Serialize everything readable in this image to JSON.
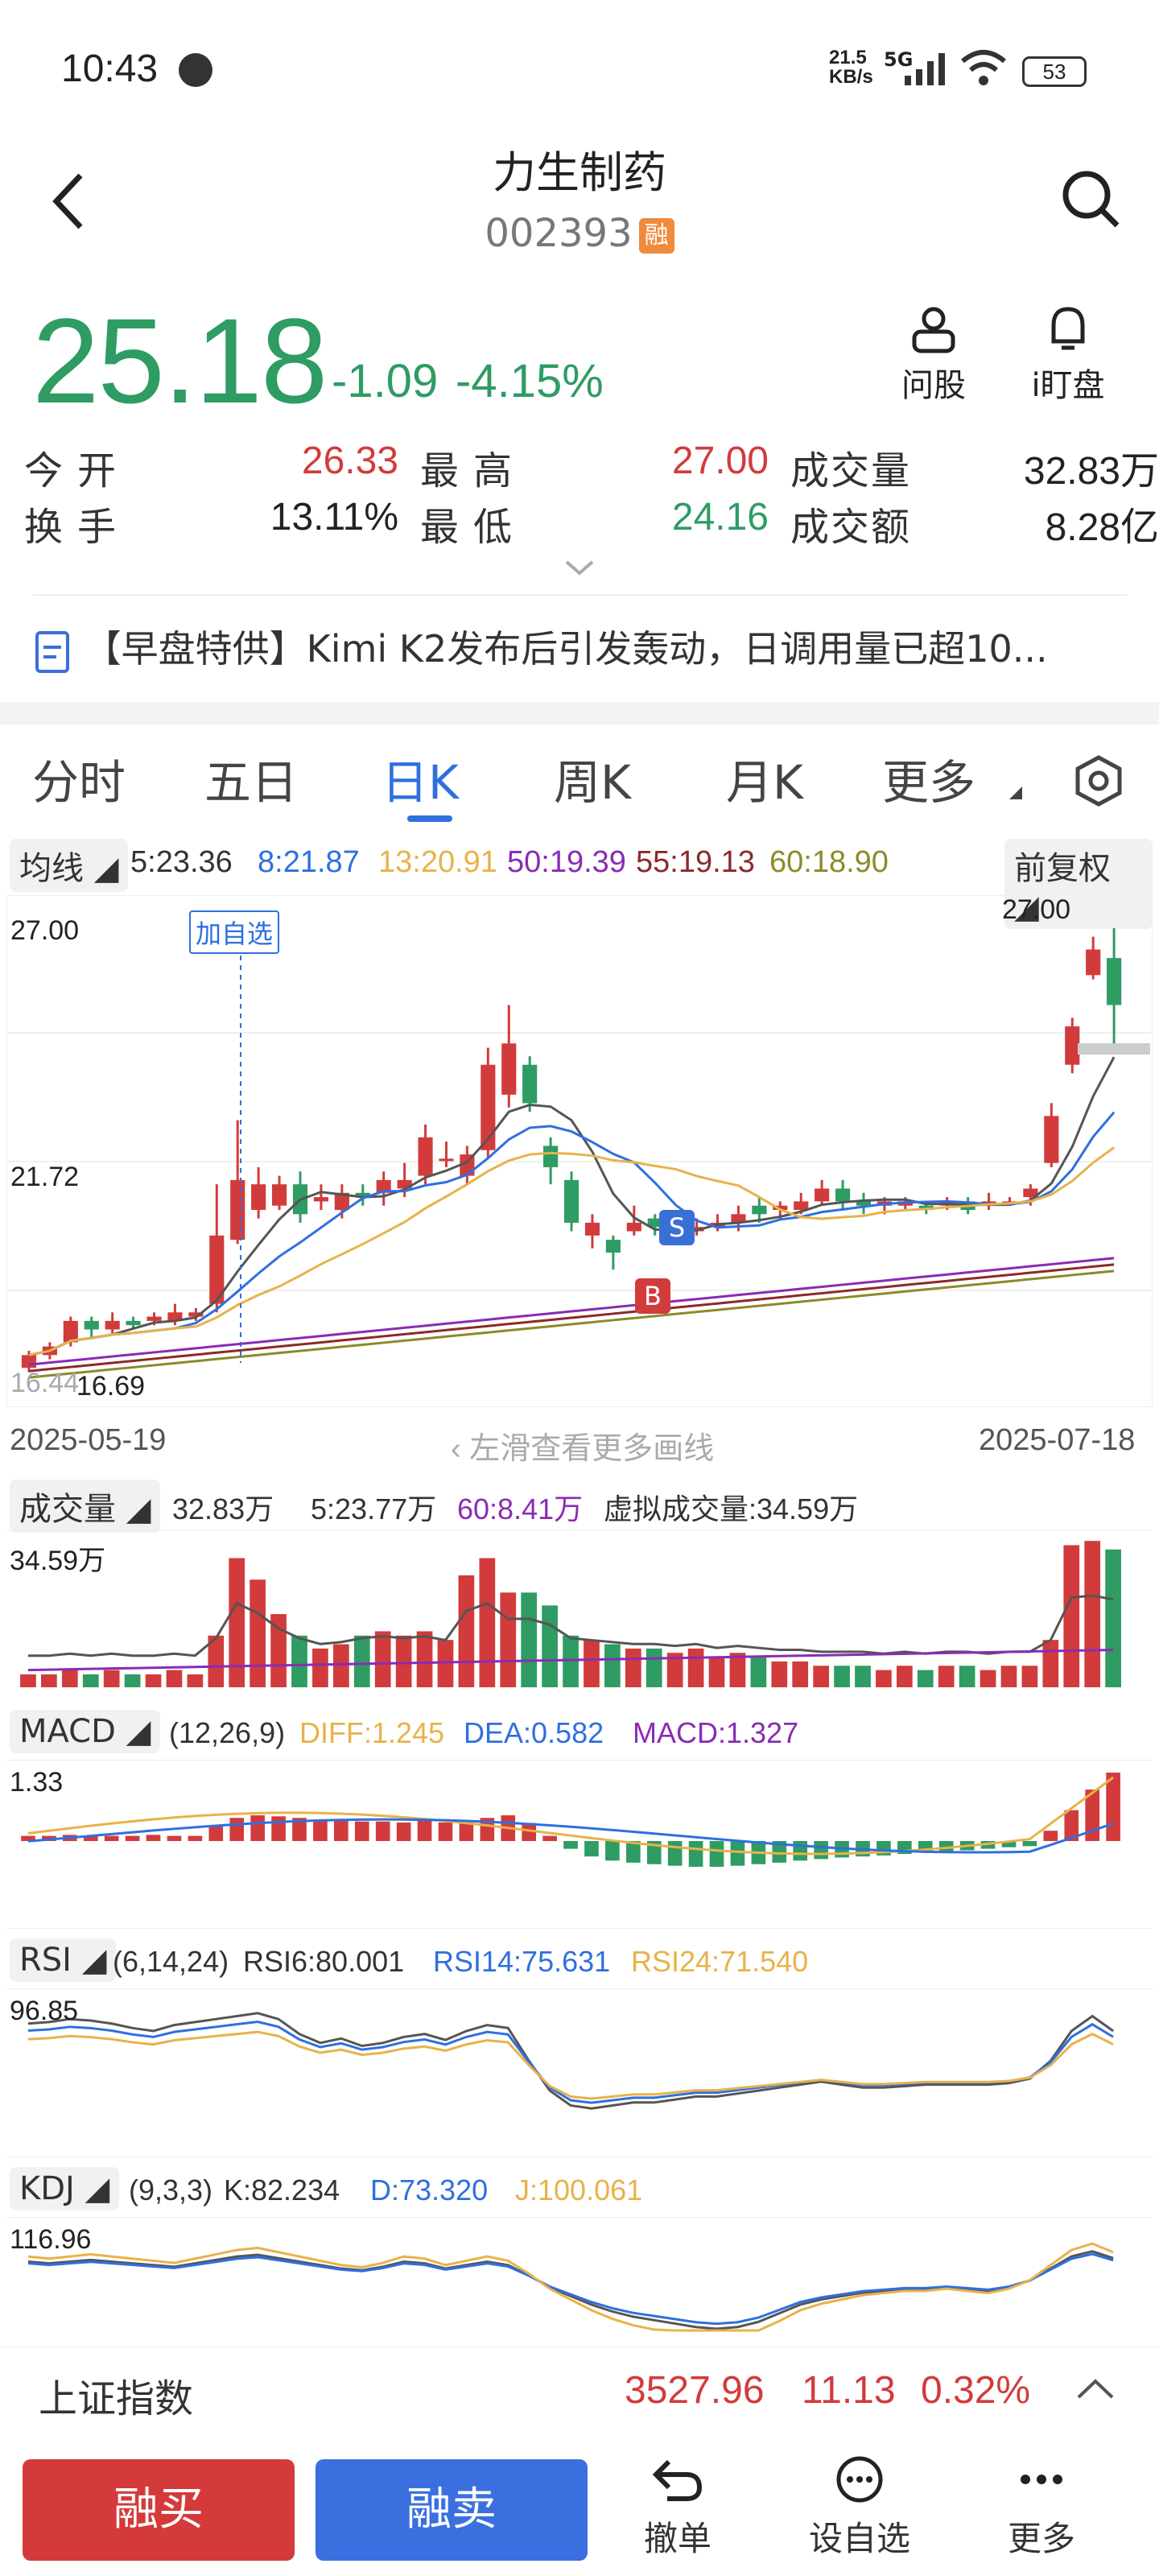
{
  "status": {
    "time": "10:43",
    "net_speed_top": "21.5",
    "net_speed_bottom": "KB/s",
    "net_type": "5G",
    "battery": "53"
  },
  "header": {
    "title": "力生制药",
    "code": "002393",
    "margin_badge": "融"
  },
  "quote": {
    "price": "25.18",
    "change": "-1.09",
    "change_pct": "-4.15%",
    "ask_label": "问股",
    "watch_label": "i盯盘",
    "rows": [
      {
        "l1": "今开",
        "v1": "26.33",
        "l2": "最高",
        "v2": "27.00",
        "l3": "成交量",
        "v3": "32.83万"
      },
      {
        "l1": "换手",
        "v1": "13.11%",
        "l2": "最低",
        "v2": "24.16",
        "l3": "成交额",
        "v3": "8.28亿"
      }
    ]
  },
  "news": {
    "text": "【早盘特供】Kimi K2发布后引发轰动，日调用量已超10..."
  },
  "tabs": [
    "分时",
    "五日",
    "日K",
    "周K",
    "月K",
    "更多"
  ],
  "active_tab": "日K",
  "ma_bar": {
    "label": "均线",
    "ma5": "5:23.36",
    "ma8": "8:21.87",
    "ma13": "13:20.91",
    "ma50": "50:19.39",
    "ma55": "55:19.13",
    "ma60": "60:18.90",
    "adjust": "前复权"
  },
  "kline": {
    "high_label": "27.00",
    "mid_label": "21.72",
    "low_label": "16.44",
    "min_mark": "16.69",
    "max_mark": "27.00",
    "add_watch_tag": "加自选",
    "sell_tag": "S",
    "buy_tag": "B",
    "start_date": "2025-05-19",
    "end_date": "2025-07-18",
    "swipe_hint": "左滑查看更多画线"
  },
  "volume": {
    "label": "成交量",
    "v": "32.83万",
    "ma5": "5:23.77万",
    "ma60": "60:8.41万",
    "virtual": "虚拟成交量:34.59万",
    "axis_max": "34.59万"
  },
  "macd": {
    "label": "MACD",
    "params": "(12,26,9)",
    "diff": "DIFF:1.245",
    "dea": "DEA:0.582",
    "macd": "MACD:1.327",
    "axis_max": "1.33"
  },
  "rsi": {
    "label": "RSI",
    "params": "(6,14,24)",
    "rsi6": "RSI6:80.001",
    "rsi14": "RSI14:75.631",
    "rsi24": "RSI24:71.540",
    "axis_max": "96.85"
  },
  "kdj": {
    "label": "KDJ",
    "params": "(9,3,3)",
    "k": "K:82.234",
    "d": "D:73.320",
    "j": "J:100.061",
    "axis_max": "116.96"
  },
  "index_bar": {
    "name": "上证指数",
    "value": "3527.96",
    "change": "11.13",
    "pct": "0.32%"
  },
  "actions": {
    "buy": "融买",
    "sell": "融卖",
    "cancel": "撤单",
    "watch": "设自选",
    "more": "更多"
  },
  "colors": {
    "up": "#d23b3b",
    "down": "#2e9c63",
    "accent": "#2f6fe0",
    "buy_btn": "#d43a3a",
    "sell_btn": "#3b6fe0"
  }
}
